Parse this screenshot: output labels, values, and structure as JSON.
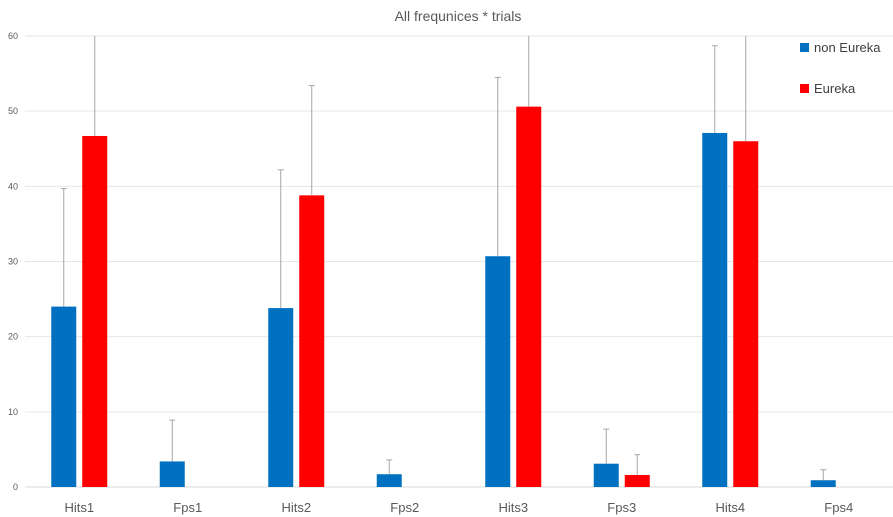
{
  "chart_data": {
    "type": "bar",
    "title": "All frequnices * trials",
    "xlabel": "",
    "ylabel": "",
    "ylim": [
      0,
      60
    ],
    "yticks": [
      0,
      10,
      20,
      30,
      40,
      50,
      60
    ],
    "categories": [
      "Hits1",
      "Fps1",
      "Hits2",
      "Fps2",
      "Hits3",
      "Fps3",
      "Hits4",
      "Fps4"
    ],
    "series": [
      {
        "name": "non Eureka",
        "color": "#0070C0",
        "values": [
          24.0,
          3.4,
          23.8,
          1.7,
          30.7,
          3.1,
          47.1,
          0.9
        ],
        "error_upper": [
          39.7,
          8.9,
          42.2,
          3.6,
          54.5,
          7.7,
          58.7,
          2.3
        ]
      },
      {
        "name": "Eureka",
        "color": "#FF0000",
        "values": [
          46.7,
          0,
          38.8,
          0,
          50.6,
          1.6,
          46.0,
          0
        ],
        "error_upper": [
          60,
          null,
          53.4,
          null,
          60,
          4.3,
          60,
          null
        ]
      }
    ],
    "legend_position": "top-right",
    "grid": true
  }
}
